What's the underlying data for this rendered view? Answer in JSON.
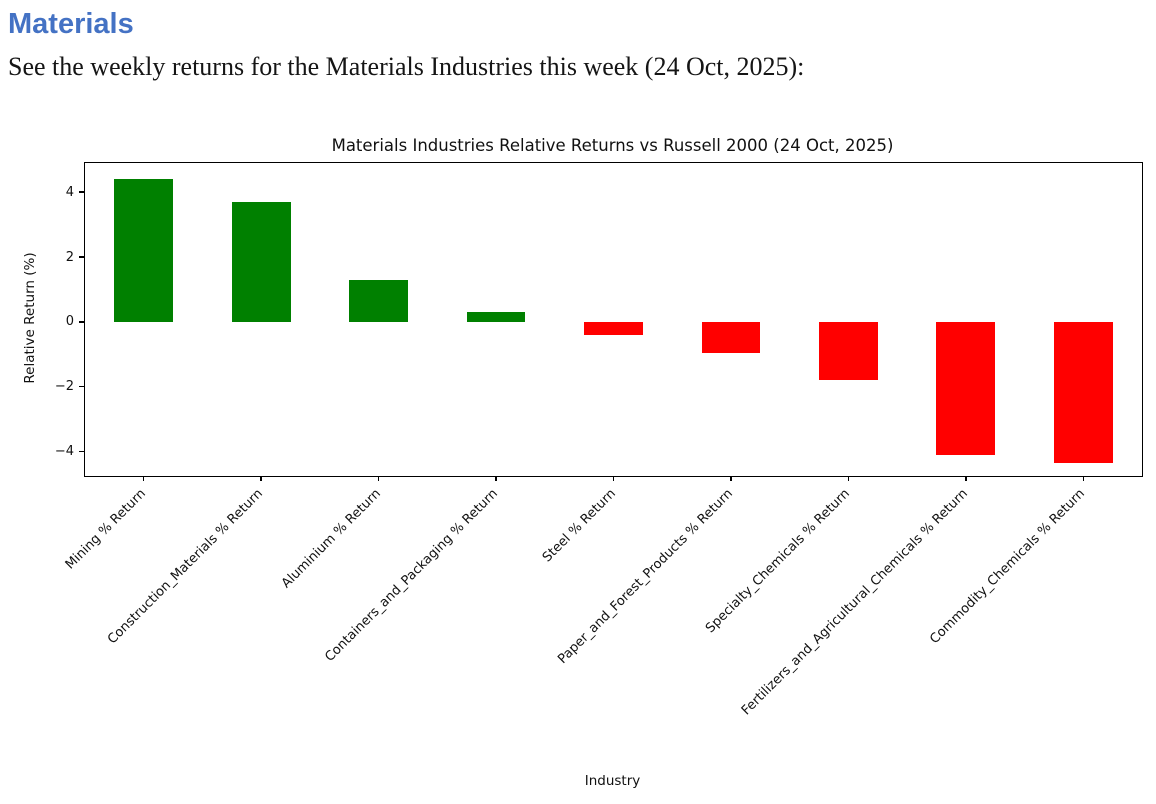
{
  "page": {
    "heading": "Materials",
    "heading_color": "#4472C4",
    "intro": "See the weekly returns for the Materials Industries this week (24 Oct, 2025):"
  },
  "chart_data": {
    "type": "bar",
    "title": "Materials Industries Relative Returns vs Russell 2000 (24 Oct, 2025)",
    "xlabel": "Industry",
    "ylabel": "Relative Return (%)",
    "categories": [
      "Mining % Return",
      "Construction_Materials % Return",
      "Aluminium % Return",
      "Containers_and_Packaging % Return",
      "Steel % Return",
      "Paper_and_Forest_Products % Return",
      "Specialty_Chemicals % Return",
      "Fertilizers_and_Agricultural_Chemicals % Return",
      "Commodity_Chemicals % Return"
    ],
    "values": [
      4.4,
      3.7,
      1.3,
      0.3,
      -0.4,
      -0.95,
      -1.8,
      -4.1,
      -4.35
    ],
    "positive_color": "#008000",
    "negative_color": "#ff0000",
    "ylim": [
      -4.75,
      4.9
    ],
    "yticks": [
      4,
      2,
      0,
      -2,
      -4
    ],
    "ytick_labels": [
      "4",
      "2",
      "0",
      "−2",
      "−4"
    ],
    "bar_width_fraction": 0.5,
    "grid": false,
    "legend": null
  }
}
